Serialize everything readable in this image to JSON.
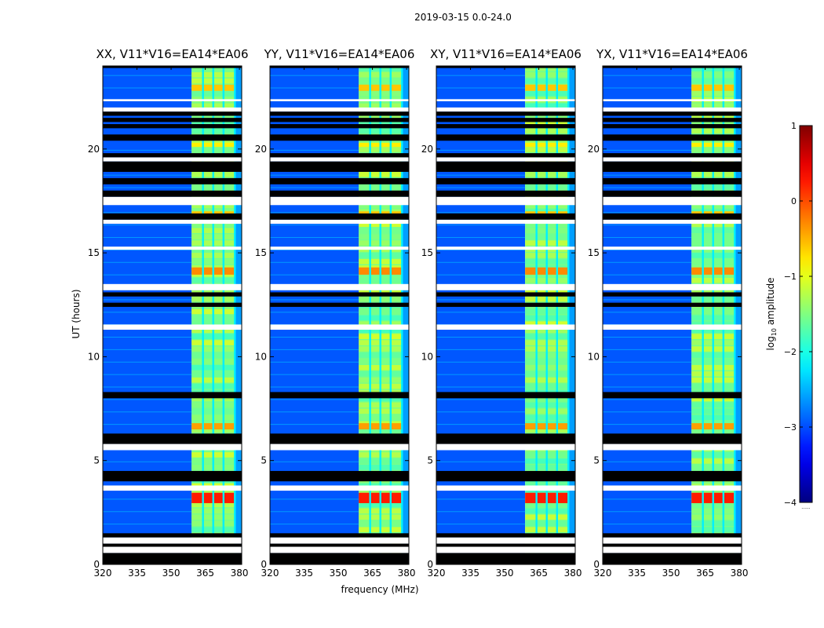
{
  "figure_title": "2019-03-15 0.0-24.0",
  "colors": {
    "frame": "#000000",
    "gap_row": "#ffffff",
    "flagged_row": "#000000"
  },
  "chart_data": {
    "type": "heatmap",
    "title": "2019-03-15 0.0-24.0",
    "shared": {
      "xlabel": "frequency (MHz)",
      "ylabel": "UT (hours)",
      "xlim": [
        320,
        381
      ],
      "ylim": [
        0,
        24
      ],
      "xticks": [
        320,
        335,
        350,
        365,
        380
      ],
      "xtick_labels": [
        "320",
        "335",
        "350",
        "365",
        "380"
      ],
      "yticks": [
        0,
        5,
        10,
        15,
        20
      ],
      "ytick_labels": [
        "0",
        "5",
        "10",
        "15",
        "20"
      ],
      "background_band_mhz": [
        320,
        359
      ],
      "active_band_mhz": [
        359,
        378
      ],
      "band_dividers_mhz": [
        364,
        368.5,
        373,
        378
      ]
    },
    "panels": [
      {
        "title": "XX, V11*V16=EA14*EA06",
        "pol": "XX"
      },
      {
        "title": "YY, V11*V16=EA14*EA06",
        "pol": "YY"
      },
      {
        "title": "XY, V11*V16=EA14*EA06",
        "pol": "XY"
      },
      {
        "title": "YX, V11*V16=EA14*EA06",
        "pol": "YX"
      }
    ],
    "flagged_hours": [
      [
        0,
        0.55
      ],
      [
        0.85,
        1.0
      ],
      [
        1.3,
        1.5
      ],
      [
        4.0,
        4.5
      ],
      [
        5.8,
        6.3
      ],
      [
        8.0,
        8.3
      ],
      [
        12.4,
        12.6
      ],
      [
        12.9,
        13.1
      ],
      [
        16.6,
        16.9
      ],
      [
        17.7,
        18.0
      ],
      [
        18.3,
        18.6
      ],
      [
        18.9,
        19.4
      ],
      [
        19.6,
        19.8
      ],
      [
        20.4,
        20.7
      ],
      [
        21.0,
        21.2
      ],
      [
        21.3,
        21.5
      ],
      [
        21.6,
        21.8
      ],
      [
        23.9,
        24.0
      ]
    ],
    "gap_hours": [
      [
        0.55,
        0.85
      ],
      [
        1.0,
        1.3
      ],
      [
        3.55,
        3.8
      ],
      [
        5.5,
        5.8
      ],
      [
        11.3,
        11.55
      ],
      [
        13.2,
        13.5
      ],
      [
        15.15,
        15.3
      ],
      [
        16.4,
        16.6
      ],
      [
        17.3,
        17.7
      ],
      [
        19.4,
        19.6
      ],
      [
        21.8,
        22.0
      ],
      [
        22.3,
        22.4
      ]
    ],
    "hot_rows": [
      {
        "hours": [
          2.95,
          3.45
        ],
        "level": 0.25
      },
      {
        "hours": [
          13.95,
          14.3
        ],
        "level": -0.3
      },
      {
        "hours": [
          6.5,
          6.8
        ],
        "level": -0.4
      },
      {
        "hours": [
          22.8,
          23.1
        ],
        "level": -0.6
      },
      {
        "hours": [
          16.7,
          17.0
        ],
        "level": -0.6
      },
      {
        "hours": [
          20.1,
          20.3
        ],
        "level": -0.8
      }
    ],
    "colorbar": {
      "label": "log10 amplitude",
      "label_main": "log",
      "label_sub": "10",
      "label_rest": " amplitude",
      "min": -4,
      "max": 1,
      "ticks": [
        1,
        0,
        -1,
        -2,
        -3,
        -4
      ],
      "tick_labels": [
        "1",
        "0",
        "−1",
        "−2",
        "−3",
        "−4"
      ],
      "colormap": "jet",
      "footnote": "......"
    }
  }
}
